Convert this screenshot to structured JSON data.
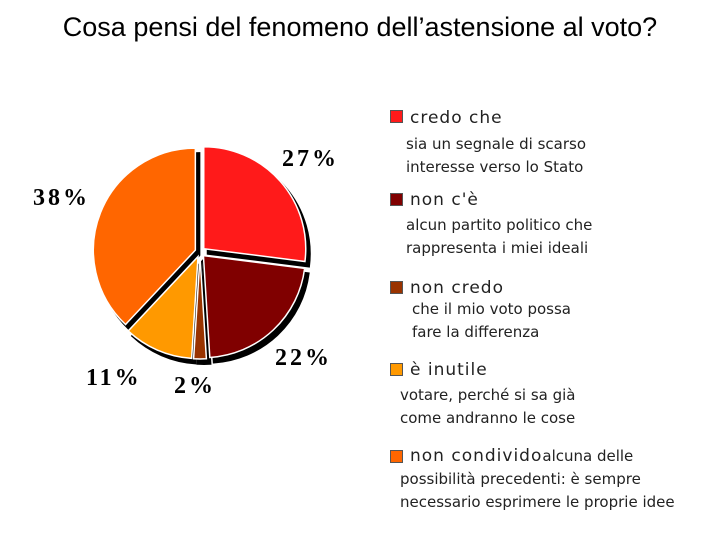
{
  "title": "Cosa pensi del fenomeno dell’astensione al voto?",
  "chart_data": {
    "type": "pie",
    "title": "Cosa pensi del fenomeno dell’astensione al voto?",
    "slices": [
      {
        "label": "27%",
        "value": 27,
        "color": "#ff1a1a"
      },
      {
        "label": "22%",
        "value": 22,
        "color": "#800000"
      },
      {
        "label": "2%",
        "value": 2,
        "color": "#993300"
      },
      {
        "label": "11%",
        "value": 11,
        "color": "#ff9900"
      },
      {
        "label": "38%",
        "value": 38,
        "color": "#ff6600"
      }
    ],
    "legend_placement": "right"
  },
  "legend": [
    {
      "head": "credo che",
      "body": [
        "sia un segnale di scarso",
        "interesse verso lo Stato"
      ],
      "color": "#ff1a1a"
    },
    {
      "head": "non c'è",
      "body": [
        "alcun partito politico che",
        "rappresenta i miei ideali"
      ],
      "color": "#800000"
    },
    {
      "head": "non credo",
      "body": [
        "che il mio voto possa",
        "fare la differenza"
      ],
      "color": "#993300"
    },
    {
      "head": "è inutile",
      "body": [
        "votare, perché si sa già",
        "come andranno le cose"
      ],
      "color": "#ff9900"
    },
    {
      "head": "non condivido",
      "head_tail": "alcuna delle",
      "body": [
        "possibilità precedenti: è sempre",
        "necessario esprimere le proprie idee"
      ],
      "color": "#ff6600"
    }
  ]
}
